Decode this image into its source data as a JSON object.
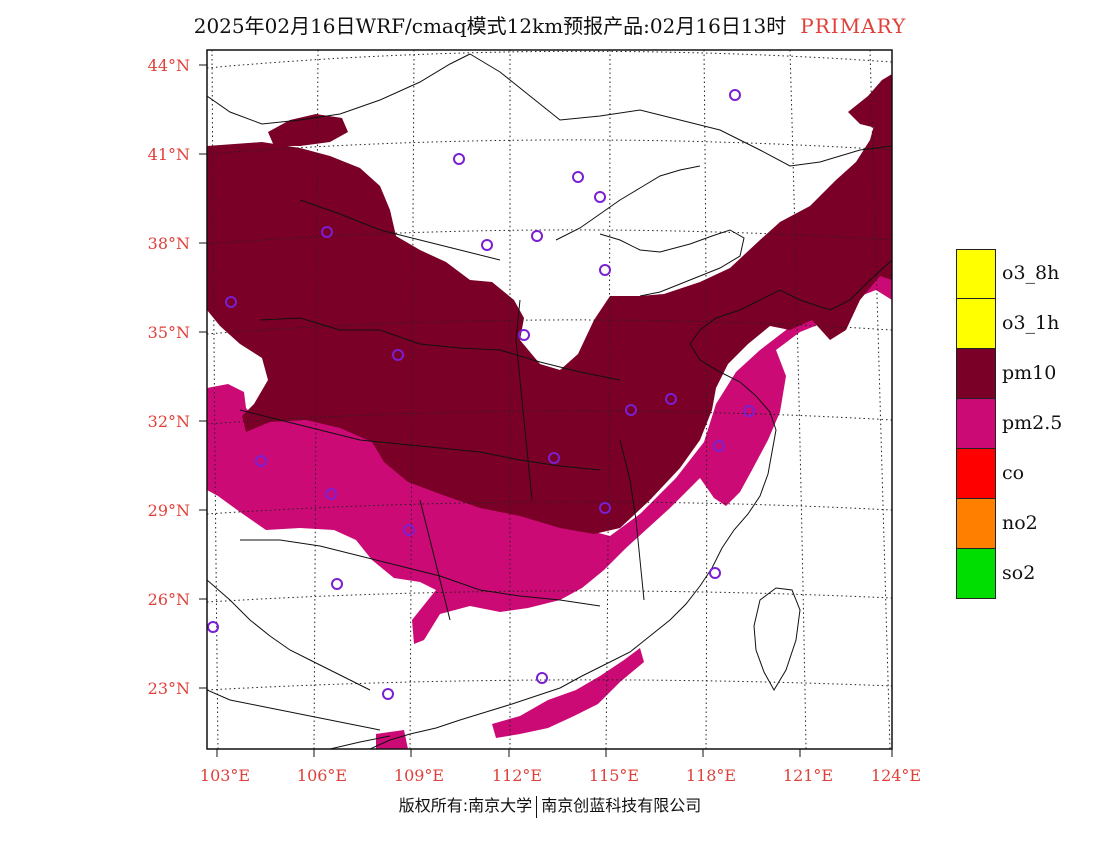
{
  "title": {
    "text": "2025年02月16日WRF/cmaq模式12km预报产品:02月16日13时",
    "tag": "PRIMARY"
  },
  "colors": {
    "pm10": "#7a0027",
    "pm25": "#cc0a75",
    "label_red": "#e0403a",
    "station_purple": "#7a1fd1"
  },
  "lat_labels": [
    "44°N",
    "41°N",
    "38°N",
    "35°N",
    "32°N",
    "29°N",
    "26°N",
    "23°N"
  ],
  "lon_labels": [
    "103°E",
    "106°E",
    "109°E",
    "112°E",
    "115°E",
    "118°E",
    "121°E",
    "124°E"
  ],
  "legend": [
    {
      "label": "o3_8h",
      "color": "#ffff00"
    },
    {
      "label": "o3_1h",
      "color": "#ffff00"
    },
    {
      "label": "pm10",
      "color": "#7a0027"
    },
    {
      "label": "pm2.5",
      "color": "#cc0a75"
    },
    {
      "label": "co",
      "color": "#ff0000"
    },
    {
      "label": "no2",
      "color": "#ff7f00"
    },
    {
      "label": "so2",
      "color": "#00dd00"
    }
  ],
  "copyright": {
    "left": "版权所有:南京大学",
    "right": "南京创蓝科技有限公司"
  }
}
